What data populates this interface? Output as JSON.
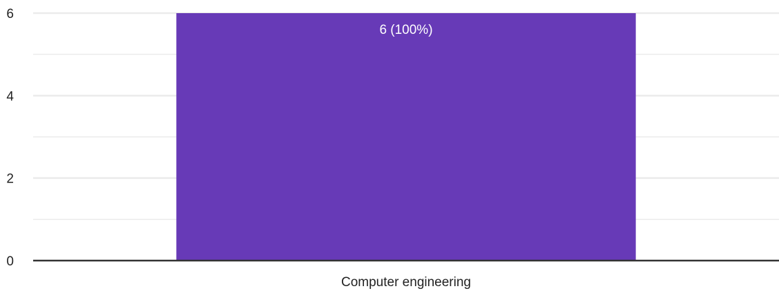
{
  "chart_data": {
    "type": "bar",
    "categories": [
      "Computer engineering"
    ],
    "values": [
      6
    ],
    "data_labels": [
      "6 (100%)"
    ],
    "ylim": [
      0,
      6
    ],
    "yticks": [
      0,
      2,
      4,
      6
    ],
    "minor_grid": [
      1,
      3,
      5
    ],
    "grid": true,
    "colors": {
      "bar": "#673ab7",
      "grid": "#ebebeb",
      "axis": "#333333",
      "tick_label": "#222222",
      "data_label": "#ffffff"
    }
  }
}
